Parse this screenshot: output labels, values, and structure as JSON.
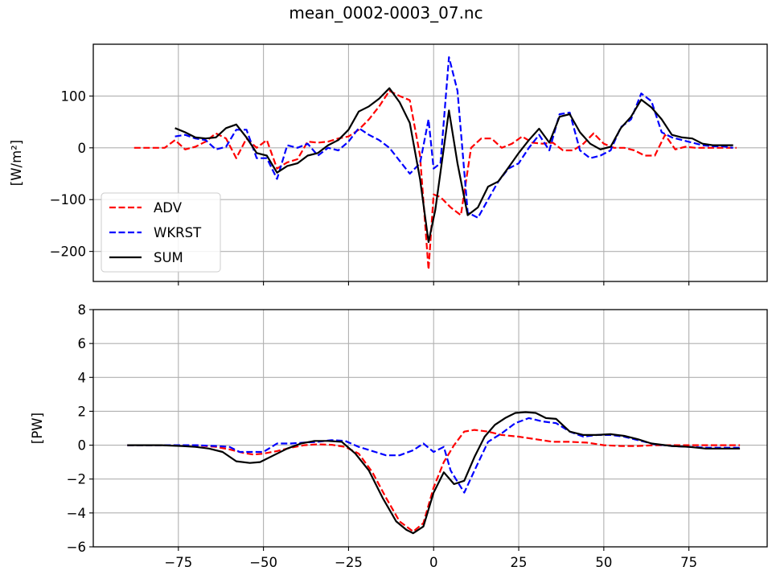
{
  "title": "mean_0002-0003_07.nc",
  "chart_data": [
    {
      "type": "line",
      "ylabel": "[W/m²]",
      "xlim": [
        -100,
        98
      ],
      "ylim": [
        -258,
        200
      ],
      "xticks": [
        -75,
        -50,
        -25,
        0,
        25,
        50,
        75
      ],
      "yticks": [
        -200,
        -100,
        0,
        100
      ],
      "ytick_labels": [
        "−200",
        "−100",
        "0",
        "100"
      ],
      "show_xtick_labels": false,
      "grid": true,
      "legend_position": "lower-left",
      "series": [
        {
          "name": "ADV",
          "color": "#ff0000",
          "style": "dashed",
          "x": [
            -88,
            -85,
            -82,
            -79,
            -76,
            -73,
            -70,
            -67,
            -64,
            -61,
            -58,
            -55,
            -52,
            -49,
            -46,
            -43,
            -40,
            -37,
            -34,
            -31,
            -28,
            -25,
            -22,
            -19,
            -16,
            -13,
            -10,
            -7,
            -4,
            -1.5,
            0,
            2,
            5,
            8,
            11,
            14,
            17,
            20,
            23,
            26,
            29,
            32,
            35,
            38,
            41,
            44,
            47,
            50,
            53,
            56,
            59,
            62,
            65,
            68,
            71,
            74,
            77,
            80,
            83,
            86,
            89
          ],
          "y": [
            0,
            0,
            0,
            0,
            15,
            -3,
            2,
            12,
            28,
            18,
            -20,
            18,
            0,
            15,
            -40,
            -28,
            -22,
            12,
            10,
            12,
            18,
            22,
            35,
            55,
            80,
            110,
            100,
            92,
            -15,
            -235,
            -90,
            -95,
            -115,
            -130,
            0,
            18,
            18,
            0,
            8,
            22,
            10,
            8,
            10,
            -5,
            -5,
            8,
            28,
            8,
            0,
            0,
            -5,
            -15,
            -15,
            25,
            -3,
            2,
            0,
            0,
            0,
            0,
            0
          ]
        },
        {
          "name": "WKRST",
          "color": "#0000ff",
          "style": "dashed",
          "x": [
            -76,
            -73,
            -70,
            -67,
            -64,
            -61,
            -58,
            -55,
            -52,
            -49,
            -46,
            -43,
            -40,
            -37,
            -34,
            -31,
            -28,
            -25,
            -22,
            -19,
            -16,
            -13,
            -10,
            -7,
            -4,
            -1.5,
            0,
            2,
            4.5,
            7,
            10,
            13,
            16,
            19,
            22,
            25,
            28,
            31,
            34,
            37,
            40,
            43,
            46,
            49,
            52,
            55,
            58,
            61,
            64,
            67,
            70,
            73,
            76,
            79,
            82,
            85,
            88
          ],
          "y": [
            22,
            25,
            18,
            15,
            -3,
            2,
            35,
            35,
            -20,
            -20,
            -60,
            5,
            0,
            8,
            -15,
            0,
            -5,
            12,
            38,
            25,
            15,
            0,
            -25,
            -50,
            -30,
            55,
            -40,
            -30,
            175,
            110,
            -125,
            -135,
            -100,
            -65,
            -40,
            -30,
            0,
            25,
            -5,
            65,
            68,
            -5,
            -20,
            -15,
            -5,
            40,
            55,
            105,
            90,
            30,
            20,
            15,
            10,
            5,
            3,
            3,
            0
          ]
        },
        {
          "name": "SUM",
          "color": "#000000",
          "style": "solid",
          "x": [
            -76,
            -73,
            -70,
            -67,
            -64,
            -61,
            -58,
            -55,
            -52,
            -49,
            -46,
            -43,
            -40,
            -37,
            -34,
            -31,
            -28,
            -25,
            -22,
            -19,
            -16,
            -13,
            -10,
            -7,
            -4,
            -1.5,
            0.5,
            4.5,
            7,
            10,
            13,
            16,
            19,
            22,
            25,
            28,
            31,
            34,
            37,
            40,
            43,
            46,
            49,
            52,
            55,
            58,
            61,
            64,
            67,
            70,
            73,
            76,
            79,
            82,
            85,
            88
          ],
          "y": [
            38,
            30,
            20,
            18,
            20,
            38,
            45,
            20,
            -10,
            -15,
            -48,
            -35,
            -30,
            -15,
            -10,
            5,
            15,
            35,
            70,
            80,
            95,
            115,
            88,
            48,
            -60,
            -182,
            -120,
            72,
            -30,
            -130,
            -115,
            -75,
            -65,
            -38,
            -10,
            15,
            37,
            10,
            60,
            65,
            30,
            8,
            -3,
            2,
            38,
            60,
            93,
            78,
            55,
            25,
            20,
            18,
            8,
            5,
            5,
            5
          ]
        }
      ]
    },
    {
      "type": "line",
      "ylabel": "[PW]",
      "xlim": [
        -100,
        98
      ],
      "ylim": [
        -6,
        8
      ],
      "xticks": [
        -75,
        -50,
        -25,
        0,
        25,
        50,
        75
      ],
      "xtick_labels": [
        "−75",
        "−50",
        "−25",
        "0",
        "25",
        "50",
        "75"
      ],
      "yticks": [
        -6,
        -4,
        -2,
        0,
        2,
        4,
        6,
        8
      ],
      "ytick_labels": [
        "−6",
        "−4",
        "−2",
        "0",
        "2",
        "4",
        "6",
        "8"
      ],
      "grid": true,
      "series": [
        {
          "name": "ADV",
          "color": "#ff0000",
          "style": "dashed",
          "x": [
            -90,
            -80,
            -70,
            -64,
            -60,
            -56,
            -53,
            -50,
            -46,
            -42,
            -38,
            -34,
            -30,
            -26,
            -22,
            -18,
            -14,
            -10,
            -6,
            -3,
            0,
            3,
            6,
            9,
            12,
            16,
            20,
            25,
            30,
            35,
            40,
            45,
            50,
            55,
            60,
            65,
            70,
            75,
            80,
            85,
            90
          ],
          "y": [
            0,
            0,
            0,
            -0.1,
            -0.25,
            -0.45,
            -0.55,
            -0.5,
            -0.35,
            -0.15,
            0,
            0.05,
            0.02,
            -0.1,
            -0.5,
            -1.6,
            -3.1,
            -4.5,
            -5.1,
            -4.6,
            -2.5,
            -1.0,
            0.0,
            0.8,
            0.9,
            0.8,
            0.6,
            0.5,
            0.35,
            0.2,
            0.2,
            0.15,
            0.0,
            -0.05,
            -0.05,
            0.0,
            0.0,
            0.0,
            0.0,
            0.0,
            0.0
          ]
        },
        {
          "name": "WKRST",
          "color": "#0000ff",
          "style": "dashed",
          "x": [
            -90,
            -80,
            -70,
            -64,
            -60,
            -57,
            -53,
            -50,
            -46,
            -42,
            -38,
            -34,
            -30,
            -26,
            -22,
            -18,
            -14,
            -10,
            -6,
            -3,
            0,
            3,
            5,
            9,
            12,
            16,
            20,
            24,
            28,
            32,
            36,
            40,
            44,
            48,
            52,
            56,
            60,
            65,
            70,
            75,
            80,
            85,
            90
          ],
          "y": [
            0,
            0,
            0,
            -0.05,
            -0.1,
            -0.4,
            -0.4,
            -0.4,
            0.1,
            0.1,
            0.15,
            0.2,
            0.3,
            0.25,
            -0.1,
            -0.35,
            -0.6,
            -0.6,
            -0.3,
            0.1,
            -0.4,
            -0.1,
            -1.5,
            -2.8,
            -1.5,
            0.2,
            0.7,
            1.3,
            1.6,
            1.4,
            1.3,
            0.8,
            0.5,
            0.6,
            0.6,
            0.5,
            0.3,
            0.05,
            -0.05,
            -0.1,
            -0.15,
            -0.15,
            -0.15
          ]
        },
        {
          "name": "SUM",
          "color": "#000000",
          "style": "solid",
          "x": [
            -90,
            -80,
            -74,
            -70,
            -66,
            -62,
            -58,
            -54,
            -51,
            -47,
            -43,
            -39,
            -35,
            -31,
            -27,
            -23,
            -19,
            -15,
            -11,
            -8,
            -6,
            -3,
            0,
            3,
            6,
            9,
            12,
            15,
            18,
            21,
            24,
            27,
            30,
            33,
            36,
            40,
            44,
            48,
            52,
            56,
            60,
            64,
            70,
            75,
            80,
            85,
            90
          ],
          "y": [
            0,
            0,
            -0.05,
            -0.1,
            -0.2,
            -0.4,
            -0.95,
            -1.05,
            -1.0,
            -0.6,
            -0.2,
            0.1,
            0.25,
            0.25,
            0.2,
            -0.5,
            -1.5,
            -3.1,
            -4.5,
            -5.0,
            -5.2,
            -4.8,
            -2.8,
            -1.6,
            -2.3,
            -2.1,
            -0.7,
            0.5,
            1.2,
            1.6,
            1.9,
            1.95,
            1.9,
            1.6,
            1.55,
            0.8,
            0.6,
            0.6,
            0.65,
            0.55,
            0.35,
            0.1,
            -0.05,
            -0.1,
            -0.2,
            -0.2,
            -0.2
          ]
        }
      ]
    }
  ]
}
